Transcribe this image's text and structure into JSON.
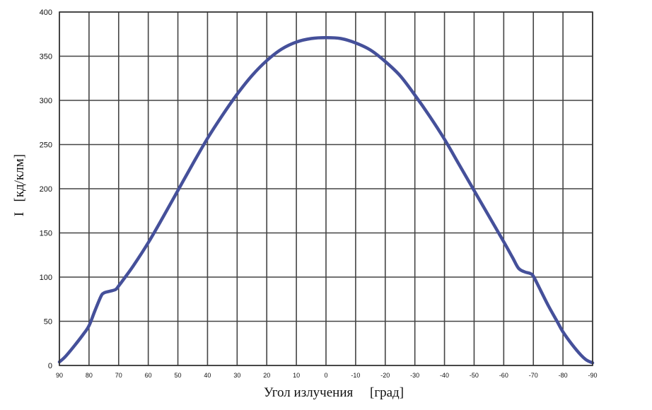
{
  "colors": {
    "series": "#45509a",
    "grid": "#444444"
  },
  "chart_data": {
    "type": "line",
    "title": "",
    "xlabel": "Угол излучения     [град]",
    "ylabel": "I   [кд/клм]",
    "xlim": [
      90,
      -90
    ],
    "ylim": [
      0,
      400
    ],
    "grid": true,
    "x_ticks": [
      "90",
      "80",
      "70",
      "60",
      "50",
      "40",
      "30",
      "20",
      "10",
      "0",
      "-10",
      "-20",
      "-30",
      "-40",
      "-50",
      "-60",
      "-70",
      "-80",
      "-90"
    ],
    "y_ticks": [
      "0",
      "50",
      "100",
      "150",
      "200",
      "250",
      "300",
      "350",
      "400"
    ],
    "series": [
      {
        "x": [
          90,
          88,
          85,
          82,
          80,
          78,
          76,
          75,
          73,
          71,
          70,
          68,
          65,
          60,
          55,
          50,
          45,
          40,
          35,
          30,
          25,
          20,
          15,
          10,
          5,
          0,
          -5,
          -10,
          -15,
          -20,
          -25,
          -30,
          -35,
          -40,
          -45,
          -50,
          -55,
          -60,
          -63,
          -65,
          -67,
          -69,
          -70,
          -72,
          -75,
          -78,
          -80,
          -83,
          -86,
          -88,
          -90
        ],
        "y": [
          4,
          10,
          22,
          35,
          45,
          62,
          78,
          82,
          84,
          86,
          90,
          99,
          113,
          139,
          168,
          198,
          228,
          257,
          283,
          307,
          328,
          345,
          358,
          366,
          370,
          371,
          370,
          365,
          357,
          344,
          328,
          306,
          282,
          256,
          227,
          198,
          169,
          140,
          122,
          110,
          106,
          104,
          101,
          88,
          68,
          50,
          38,
          24,
          12,
          6,
          3
        ]
      }
    ]
  }
}
